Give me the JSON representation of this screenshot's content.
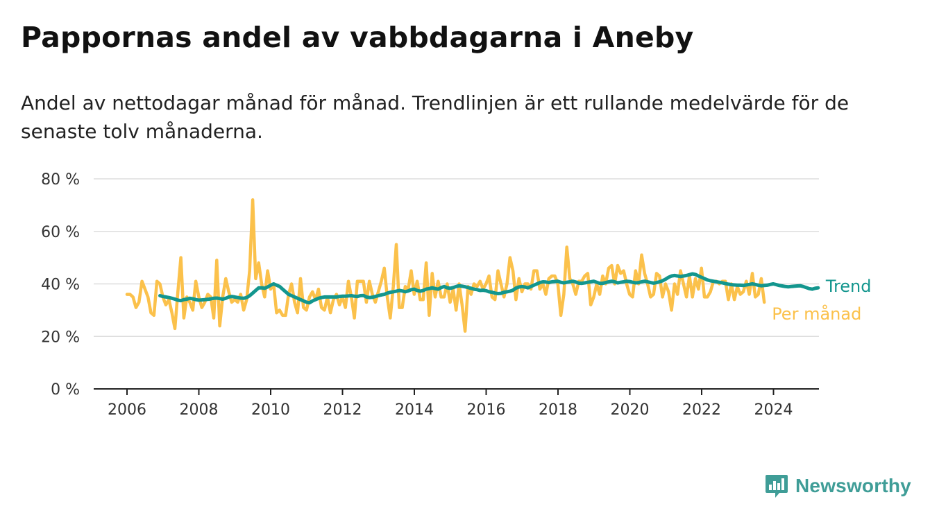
{
  "title": "Pappornas andel av vabbdagarna i Aneby",
  "subtitle": "Andel av nettodagar månad för månad. Trendlinjen är ett rullande medelvärde för de senaste tolv månaderna.",
  "brand": {
    "name": "Newsworthy",
    "icon": "newsworthy-chart-bubble-icon",
    "color": "#3f9d97"
  },
  "chart_data": {
    "type": "line",
    "x_unit": "year",
    "ylim": [
      0,
      80
    ],
    "yticks": [
      0,
      20,
      40,
      60,
      80
    ],
    "ytick_labels": [
      "0 %",
      "20 %",
      "40 %",
      "60 %",
      "80 %"
    ],
    "xticks": [
      2006,
      2008,
      2010,
      2012,
      2014,
      2016,
      2018,
      2020,
      2022,
      2024
    ],
    "xtick_labels": [
      "2006",
      "2008",
      "2010",
      "2012",
      "2014",
      "2016",
      "2018",
      "2020",
      "2022",
      "2024"
    ],
    "grid": true,
    "colors": {
      "monthly": "#fbc14b",
      "trend": "#13968e",
      "grid": "#dddddd",
      "axis": "#222222"
    },
    "series": [
      {
        "name": "Per månad",
        "start": 2006.0,
        "step": 0.0833,
        "values": [
          36,
          36,
          35,
          31,
          33,
          41,
          38,
          35,
          29,
          28,
          41,
          40,
          35,
          32,
          34,
          29,
          23,
          37,
          50,
          27,
          35,
          33,
          30,
          41,
          35,
          31,
          33,
          36,
          35,
          27,
          49,
          24,
          35,
          42,
          37,
          33,
          34,
          33,
          36,
          30,
          34,
          45,
          72,
          42,
          48,
          40,
          35,
          45,
          38,
          40,
          29,
          30,
          28,
          28,
          36,
          40,
          33,
          29,
          42,
          31,
          30,
          35,
          37,
          34,
          38,
          31,
          30,
          35,
          29,
          34,
          36,
          32,
          35,
          31,
          41,
          35,
          27,
          41,
          41,
          41,
          33,
          41,
          36,
          33,
          37,
          41,
          46,
          35,
          27,
          39,
          55,
          31,
          31,
          39,
          38,
          45,
          36,
          41,
          34,
          34,
          48,
          28,
          44,
          35,
          41,
          35,
          35,
          40,
          33,
          38,
          30,
          40,
          32,
          22,
          39,
          36,
          40,
          39,
          41,
          38,
          40,
          43,
          35,
          34,
          45,
          40,
          35,
          40,
          50,
          45,
          34,
          42,
          37,
          40,
          40,
          38,
          45,
          45,
          38,
          40,
          36,
          42,
          43,
          43,
          40,
          28,
          36,
          54,
          42,
          40,
          36,
          41,
          41,
          43,
          44,
          32,
          35,
          40,
          36,
          43,
          40,
          46,
          47,
          40,
          47,
          44,
          45,
          40,
          36,
          35,
          45,
          40,
          51,
          44,
          40,
          35,
          36,
          44,
          43,
          35,
          40,
          37,
          30,
          40,
          36,
          45,
          40,
          35,
          43,
          35,
          42,
          38,
          46,
          35,
          35,
          37,
          41,
          41,
          40,
          41,
          41,
          34,
          40,
          34,
          39,
          36,
          37,
          41,
          36,
          44,
          35,
          36,
          42,
          33
        ]
      },
      {
        "name": "Trend",
        "start": 2006.917,
        "step": 0.0833,
        "values": [
          35.5,
          35.2,
          35,
          34.8,
          34.5,
          34.2,
          33.8,
          33.6,
          34,
          34.2,
          34.5,
          34.3,
          34,
          33.8,
          33.9,
          34,
          34.1,
          34.3,
          34.5,
          34.6,
          34.4,
          34.2,
          34.5,
          35,
          35.2,
          35,
          34.8,
          34.6,
          34.5,
          34.8,
          35.5,
          36.5,
          37.5,
          38.5,
          38.5,
          38.3,
          38.8,
          39.5,
          40,
          39.5,
          39,
          38,
          37,
          36,
          35.5,
          35,
          34.5,
          34,
          33.5,
          33,
          32.8,
          33.5,
          34,
          34.5,
          34.8,
          35,
          35,
          35,
          35,
          35,
          35.2,
          35.3,
          35.3,
          35.4,
          35.5,
          35.3,
          35.2,
          35.5,
          35.6,
          35,
          34.8,
          34.9,
          35.2,
          35.5,
          35.8,
          36,
          36.5,
          36.8,
          37,
          37.2,
          37.5,
          37.3,
          37,
          37.3,
          37.8,
          38,
          37.5,
          37.2,
          37.5,
          38,
          38.2,
          38.5,
          38.2,
          38,
          38.6,
          39,
          38.5,
          38.3,
          38.6,
          39,
          39.3,
          39.1,
          38.9,
          38.6,
          38.3,
          38,
          37.8,
          37.5,
          37.6,
          37.4,
          37,
          36.8,
          36.5,
          36.3,
          36.4,
          36.8,
          37,
          37.2,
          37.6,
          38.4,
          38.8,
          39,
          38.8,
          38.5,
          39,
          39.5,
          40,
          40.5,
          40.8,
          40.7,
          40.5,
          40.8,
          40.9,
          41,
          40.6,
          40.4,
          40.6,
          40.8,
          41,
          40.7,
          40.3,
          40.2,
          40.4,
          40.6,
          40.8,
          41,
          40.6,
          40.2,
          40.2,
          40.5,
          40.8,
          41,
          40.8,
          40.4,
          40.6,
          40.8,
          41,
          40.9,
          40.6,
          40.4,
          40.5,
          40.8,
          41,
          40.8,
          40.5,
          40.3,
          40.5,
          40.8,
          41.2,
          41.8,
          42.5,
          43,
          43.2,
          43,
          42.8,
          43,
          43.2,
          43.5,
          43.8,
          43.6,
          43,
          42.5,
          42,
          41.5,
          41.2,
          41,
          40.8,
          40.6,
          40.4,
          40.1,
          39.9,
          39.7,
          39.6,
          39.5,
          39.5,
          39.4,
          39.6,
          39.8,
          40,
          39.8,
          39.5,
          39.3,
          39.4,
          39.5,
          39.8,
          40,
          39.7,
          39.4,
          39.2,
          39,
          38.9,
          39,
          39.1,
          39.2,
          39.3,
          39,
          38.6,
          38.2,
          38,
          38.3,
          38.5
        ]
      }
    ]
  }
}
